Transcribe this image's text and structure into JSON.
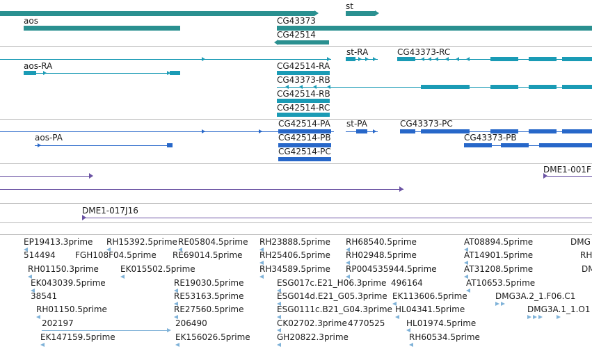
{
  "colors": {
    "gene": "#2a9090",
    "transcript": "#1a9bb5",
    "protein": "#2767c9",
    "clone": "#6a52a3",
    "est": "#7fb2d8",
    "divider": "#b8b8b8"
  },
  "gene_track": {
    "labels": {
      "st": "st",
      "aos": "aos",
      "cg43373": "CG43373",
      "cg42514": "CG42514"
    }
  },
  "transcript_track": {
    "labels": {
      "aos_ra": "aos-RA",
      "st_ra": "st-RA",
      "cg43373_rc": "CG43373-RC",
      "cg42514_ra": "CG42514-RA",
      "cg43373_rb": "CG43373-RB",
      "cg42514_rb": "CG42514-RB",
      "cg42514_rc": "CG42514-RC"
    }
  },
  "protein_track": {
    "labels": {
      "cg42514_pa": "CG42514-PA",
      "st_pa": "st-PA",
      "cg43373_pc": "CG43373-PC",
      "aos_pa": "aos-PA",
      "cg42514_pb": "CG42514-PB",
      "cg43373_pb": "CG43373-PB",
      "cg42514_pc": "CG42514-PC"
    }
  },
  "clone_track": {
    "labels": {
      "dme1_001": "DME1-001F",
      "dme1_017j16": "DME1-017J16"
    }
  },
  "est_track": {
    "labels": [
      "EP19413.3prime",
      "RH15392.5prime",
      "RE05804.5prime",
      "RH23888.5prime",
      "RH68540.5prime",
      "AT08894.5prime",
      "DMG",
      "514494",
      "FGH108F04.5prime",
      "RE69014.5prime",
      "RH25406.5prime",
      "RH02948.5prime",
      "AT14901.5prime",
      "RH",
      "RH01150.3prime",
      "EK015502.5prime",
      "RH34589.5prime",
      "RP004535944.5prime",
      "AT31208.5prime",
      "DM",
      "EK043039.5prime",
      "RE19030.5prime",
      "ESG017c.E21_H06.3prime",
      "496164",
      "AT10653.5prime",
      "38541",
      "RE53163.5prime",
      "ESG014d.E21_G05.3prime",
      "EK113606.5prime",
      "DMG3A.2_1.F06.C1",
      "RH01150.5prime",
      "RE27560.5prime",
      "ESG0111c.B21_G04.3prime",
      "HL04341.5prime",
      "DMG3A.1_1.O1",
      "202197",
      "206490",
      "CK02702.3prime",
      "4770525",
      "HL01974.5prime",
      "EK147159.5prime",
      "EK156026.5prime",
      "GH20822.3prime",
      "RH60534.5prime"
    ]
  }
}
